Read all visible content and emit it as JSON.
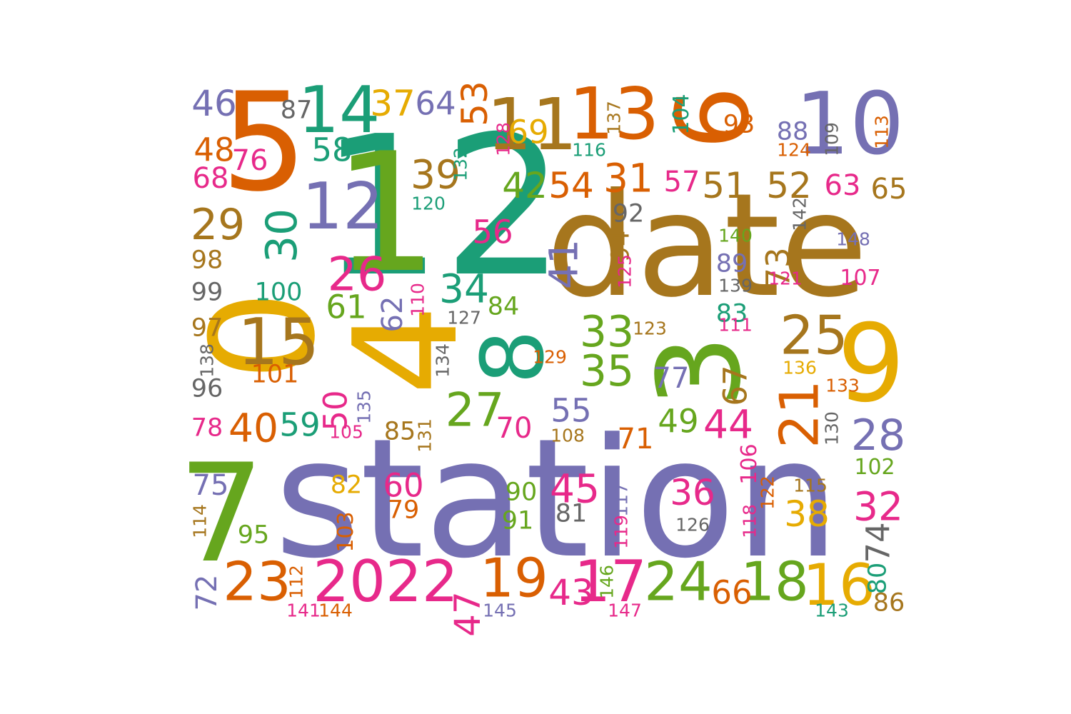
{
  "palette": {
    "teal": "#1b9e77",
    "orange": "#d95f02",
    "purple": "#7570b3",
    "pink": "#e7298a",
    "green": "#66a61e",
    "gold": "#e6ab02",
    "brown": "#a6761d",
    "gray": "#666666"
  },
  "words": [
    {
      "text": "station",
      "color": "purple",
      "vertical": false
    },
    {
      "text": "date",
      "color": "brown",
      "vertical": false
    },
    {
      "text": "12",
      "color": "teal",
      "vertical": false
    },
    {
      "text": "1",
      "color": "green",
      "vertical": false
    },
    {
      "text": "4",
      "color": "gold",
      "vertical": true
    },
    {
      "text": "0",
      "color": "gold",
      "vertical": true
    },
    {
      "text": "5",
      "color": "orange",
      "vertical": false
    },
    {
      "text": "7",
      "color": "green",
      "vertical": false
    },
    {
      "text": "8",
      "color": "teal",
      "vertical": true
    },
    {
      "text": "3",
      "color": "green",
      "vertical": true
    },
    {
      "text": "9",
      "color": "gold",
      "vertical": false
    },
    {
      "text": "6",
      "color": "orange",
      "vertical": true
    },
    {
      "text": "10",
      "color": "purple",
      "vertical": false
    },
    {
      "text": "11",
      "color": "brown",
      "vertical": false
    },
    {
      "text": "13",
      "color": "orange",
      "vertical": false
    },
    {
      "text": "14",
      "color": "teal",
      "vertical": false
    },
    {
      "text": "15",
      "color": "brown",
      "vertical": false
    },
    {
      "text": "12",
      "color": "purple",
      "vertical": false
    },
    {
      "text": "2022",
      "color": "pink",
      "vertical": false
    },
    {
      "text": "24",
      "color": "green",
      "vertical": false
    },
    {
      "text": "18",
      "color": "green",
      "vertical": false
    },
    {
      "text": "16",
      "color": "gold",
      "vertical": false
    },
    {
      "text": "19",
      "color": "orange",
      "vertical": false
    },
    {
      "text": "17",
      "color": "pink",
      "vertical": false
    },
    {
      "text": "23",
      "color": "orange",
      "vertical": false
    },
    {
      "text": "21",
      "color": "orange",
      "vertical": true
    },
    {
      "text": "25",
      "color": "brown",
      "vertical": false
    },
    {
      "text": "27",
      "color": "green",
      "vertical": false
    },
    {
      "text": "26",
      "color": "pink",
      "vertical": false
    },
    {
      "text": "28",
      "color": "purple",
      "vertical": false
    },
    {
      "text": "29",
      "color": "brown",
      "vertical": false
    },
    {
      "text": "30",
      "color": "teal",
      "vertical": true
    },
    {
      "text": "31",
      "color": "orange",
      "vertical": false
    },
    {
      "text": "32",
      "color": "pink",
      "vertical": false
    },
    {
      "text": "33",
      "color": "green",
      "vertical": false
    },
    {
      "text": "34",
      "color": "teal",
      "vertical": false
    },
    {
      "text": "35",
      "color": "green",
      "vertical": false
    },
    {
      "text": "36",
      "color": "pink",
      "vertical": false
    },
    {
      "text": "37",
      "color": "gold",
      "vertical": false
    },
    {
      "text": "38",
      "color": "gold",
      "vertical": false
    },
    {
      "text": "39",
      "color": "brown",
      "vertical": false
    },
    {
      "text": "40",
      "color": "orange",
      "vertical": false
    },
    {
      "text": "41",
      "color": "purple",
      "vertical": true
    },
    {
      "text": "42",
      "color": "green",
      "vertical": false
    },
    {
      "text": "43",
      "color": "pink",
      "vertical": false
    },
    {
      "text": "44",
      "color": "pink",
      "vertical": false
    },
    {
      "text": "45",
      "color": "pink",
      "vertical": false
    },
    {
      "text": "46",
      "color": "purple",
      "vertical": false
    },
    {
      "text": "47",
      "color": "pink",
      "vertical": true
    },
    {
      "text": "48",
      "color": "orange",
      "vertical": false
    },
    {
      "text": "49",
      "color": "green",
      "vertical": false
    },
    {
      "text": "50",
      "color": "pink",
      "vertical": true
    },
    {
      "text": "51",
      "color": "brown",
      "vertical": false
    },
    {
      "text": "52",
      "color": "brown",
      "vertical": false
    },
    {
      "text": "53",
      "color": "orange",
      "vertical": true
    },
    {
      "text": "54",
      "color": "orange",
      "vertical": false
    },
    {
      "text": "55",
      "color": "purple",
      "vertical": false
    },
    {
      "text": "56",
      "color": "pink",
      "vertical": false
    },
    {
      "text": "57",
      "color": "pink",
      "vertical": false
    },
    {
      "text": "58",
      "color": "teal",
      "vertical": false
    },
    {
      "text": "59",
      "color": "teal",
      "vertical": false
    },
    {
      "text": "60",
      "color": "pink",
      "vertical": false
    },
    {
      "text": "61",
      "color": "green",
      "vertical": false
    },
    {
      "text": "62",
      "color": "purple",
      "vertical": true
    },
    {
      "text": "63",
      "color": "pink",
      "vertical": false
    },
    {
      "text": "64",
      "color": "purple",
      "vertical": false
    },
    {
      "text": "65",
      "color": "brown",
      "vertical": false
    },
    {
      "text": "66",
      "color": "orange",
      "vertical": false
    },
    {
      "text": "67",
      "color": "brown",
      "vertical": true
    },
    {
      "text": "68",
      "color": "pink",
      "vertical": false
    },
    {
      "text": "69",
      "color": "gold",
      "vertical": false
    },
    {
      "text": "70",
      "color": "pink",
      "vertical": false
    },
    {
      "text": "71",
      "color": "orange",
      "vertical": false
    },
    {
      "text": "72",
      "color": "purple",
      "vertical": true
    },
    {
      "text": "73",
      "color": "brown",
      "vertical": true
    },
    {
      "text": "74",
      "color": "gray",
      "vertical": true
    },
    {
      "text": "75",
      "color": "purple",
      "vertical": false
    },
    {
      "text": "76",
      "color": "pink",
      "vertical": false
    },
    {
      "text": "77",
      "color": "purple",
      "vertical": false
    },
    {
      "text": "78",
      "color": "pink",
      "vertical": false
    },
    {
      "text": "79",
      "color": "orange",
      "vertical": false
    },
    {
      "text": "80",
      "color": "teal",
      "vertical": true
    },
    {
      "text": "81",
      "color": "gray",
      "vertical": false
    },
    {
      "text": "82",
      "color": "gold",
      "vertical": false
    },
    {
      "text": "83",
      "color": "teal",
      "vertical": false
    },
    {
      "text": "84",
      "color": "green",
      "vertical": false
    },
    {
      "text": "85",
      "color": "brown",
      "vertical": false
    },
    {
      "text": "86",
      "color": "brown",
      "vertical": false
    },
    {
      "text": "87",
      "color": "gray",
      "vertical": false
    },
    {
      "text": "88",
      "color": "purple",
      "vertical": false
    },
    {
      "text": "89",
      "color": "purple",
      "vertical": false
    },
    {
      "text": "90",
      "color": "green",
      "vertical": false
    },
    {
      "text": "91",
      "color": "green",
      "vertical": false
    },
    {
      "text": "92",
      "color": "gray",
      "vertical": false
    },
    {
      "text": "93",
      "color": "orange",
      "vertical": false
    },
    {
      "text": "94",
      "color": "brown",
      "vertical": true
    },
    {
      "text": "95",
      "color": "green",
      "vertical": false
    },
    {
      "text": "96",
      "color": "gray",
      "vertical": false
    },
    {
      "text": "97",
      "color": "brown",
      "vertical": false
    },
    {
      "text": "98",
      "color": "brown",
      "vertical": false
    },
    {
      "text": "99",
      "color": "gray",
      "vertical": false
    },
    {
      "text": "100",
      "color": "teal",
      "vertical": false
    },
    {
      "text": "101",
      "color": "orange",
      "vertical": false
    },
    {
      "text": "102",
      "color": "green",
      "vertical": false
    },
    {
      "text": "103",
      "color": "orange",
      "vertical": true
    },
    {
      "text": "104",
      "color": "teal",
      "vertical": true
    },
    {
      "text": "105",
      "color": "pink",
      "vertical": false
    },
    {
      "text": "106",
      "color": "pink",
      "vertical": true
    },
    {
      "text": "107",
      "color": "pink",
      "vertical": false
    },
    {
      "text": "108",
      "color": "brown",
      "vertical": false
    },
    {
      "text": "109",
      "color": "gray",
      "vertical": true
    },
    {
      "text": "110",
      "color": "pink",
      "vertical": true
    },
    {
      "text": "111",
      "color": "pink",
      "vertical": false
    },
    {
      "text": "112",
      "color": "orange",
      "vertical": true
    },
    {
      "text": "113",
      "color": "orange",
      "vertical": true
    },
    {
      "text": "114",
      "color": "brown",
      "vertical": true
    },
    {
      "text": "115",
      "color": "brown",
      "vertical": false
    },
    {
      "text": "116",
      "color": "teal",
      "vertical": false
    },
    {
      "text": "117",
      "color": "purple",
      "vertical": true
    },
    {
      "text": "118",
      "color": "pink",
      "vertical": true
    },
    {
      "text": "119",
      "color": "pink",
      "vertical": true
    },
    {
      "text": "120",
      "color": "teal",
      "vertical": false
    },
    {
      "text": "121",
      "color": "pink",
      "vertical": false
    },
    {
      "text": "122",
      "color": "orange",
      "vertical": true
    },
    {
      "text": "123",
      "color": "brown",
      "vertical": false
    },
    {
      "text": "124",
      "color": "orange",
      "vertical": false
    },
    {
      "text": "125",
      "color": "pink",
      "vertical": true
    },
    {
      "text": "126",
      "color": "gray",
      "vertical": false
    },
    {
      "text": "127",
      "color": "gray",
      "vertical": false
    },
    {
      "text": "128",
      "color": "pink",
      "vertical": true
    },
    {
      "text": "129",
      "color": "orange",
      "vertical": false
    },
    {
      "text": "130",
      "color": "gray",
      "vertical": true
    },
    {
      "text": "131",
      "color": "brown",
      "vertical": true
    },
    {
      "text": "132",
      "color": "teal",
      "vertical": true
    },
    {
      "text": "133",
      "color": "orange",
      "vertical": false
    },
    {
      "text": "134",
      "color": "gray",
      "vertical": true
    },
    {
      "text": "135",
      "color": "purple",
      "vertical": true
    },
    {
      "text": "136",
      "color": "gold",
      "vertical": false
    },
    {
      "text": "137",
      "color": "brown",
      "vertical": true
    },
    {
      "text": "138",
      "color": "gray",
      "vertical": true
    },
    {
      "text": "139",
      "color": "gray",
      "vertical": false
    },
    {
      "text": "140",
      "color": "green",
      "vertical": false
    },
    {
      "text": "141",
      "color": "pink",
      "vertical": false
    },
    {
      "text": "142",
      "color": "gray",
      "vertical": true
    },
    {
      "text": "143",
      "color": "teal",
      "vertical": false
    },
    {
      "text": "144",
      "color": "orange",
      "vertical": false
    },
    {
      "text": "145",
      "color": "purple",
      "vertical": false
    },
    {
      "text": "146",
      "color": "green",
      "vertical": true
    },
    {
      "text": "147",
      "color": "pink",
      "vertical": false
    },
    {
      "text": "148",
      "color": "purple",
      "vertical": false
    }
  ]
}
